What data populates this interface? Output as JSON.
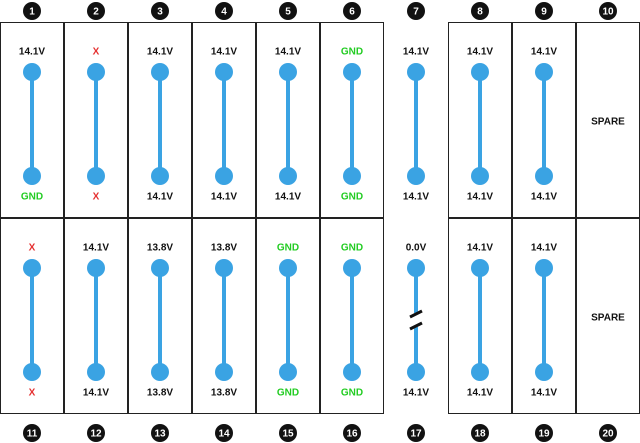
{
  "rows": [
    {
      "cells": [
        {
          "number": "1",
          "top": "14.1V",
          "top_color": "#111111",
          "bottom": "GND",
          "bottom_color": "#22cc22",
          "boxed": true
        },
        {
          "number": "2",
          "top": "X",
          "top_color": "#e53030",
          "bottom": "X",
          "bottom_color": "#e53030",
          "boxed": true
        },
        {
          "number": "3",
          "top": "14.1V",
          "top_color": "#111111",
          "bottom": "14.1V",
          "bottom_color": "#111111",
          "boxed": true
        },
        {
          "number": "4",
          "top": "14.1V",
          "top_color": "#111111",
          "bottom": "14.1V",
          "bottom_color": "#111111",
          "boxed": true
        },
        {
          "number": "5",
          "top": "14.1V",
          "top_color": "#111111",
          "bottom": "14.1V",
          "bottom_color": "#111111",
          "boxed": true
        },
        {
          "number": "6",
          "top": "GND",
          "top_color": "#22cc22",
          "bottom": "GND",
          "bottom_color": "#22cc22",
          "boxed": true
        },
        {
          "number": "7",
          "top": "14.1V",
          "top_color": "#111111",
          "bottom": "14.1V",
          "bottom_color": "#111111",
          "boxed": false
        },
        {
          "number": "8",
          "top": "14.1V",
          "top_color": "#111111",
          "bottom": "14.1V",
          "bottom_color": "#111111",
          "boxed": true
        },
        {
          "number": "9",
          "top": "14.1V",
          "top_color": "#111111",
          "bottom": "14.1V",
          "bottom_color": "#111111",
          "boxed": true
        },
        {
          "number": "10",
          "label": "SPARE",
          "boxed": true
        }
      ]
    },
    {
      "cells": [
        {
          "number": "11",
          "top": "X",
          "top_color": "#e53030",
          "bottom": "X",
          "bottom_color": "#e53030",
          "boxed": true
        },
        {
          "number": "12",
          "top": "14.1V",
          "top_color": "#111111",
          "bottom": "14.1V",
          "bottom_color": "#111111",
          "boxed": true
        },
        {
          "number": "13",
          "top": "13.8V",
          "top_color": "#111111",
          "bottom": "13.8V",
          "bottom_color": "#111111",
          "boxed": true
        },
        {
          "number": "14",
          "top": "13.8V",
          "top_color": "#111111",
          "bottom": "13.8V",
          "bottom_color": "#111111",
          "boxed": true
        },
        {
          "number": "15",
          "top": "GND",
          "top_color": "#22cc22",
          "bottom": "GND",
          "bottom_color": "#22cc22",
          "boxed": true
        },
        {
          "number": "16",
          "top": "GND",
          "top_color": "#22cc22",
          "bottom": "GND",
          "bottom_color": "#22cc22",
          "boxed": true
        },
        {
          "number": "17",
          "top": "0.0V",
          "top_color": "#111111",
          "bottom": "14.1V",
          "bottom_color": "#111111",
          "boxed": false,
          "broken": true
        },
        {
          "number": "18",
          "top": "14.1V",
          "top_color": "#111111",
          "bottom": "14.1V",
          "bottom_color": "#111111",
          "boxed": true
        },
        {
          "number": "19",
          "top": "14.1V",
          "top_color": "#111111",
          "bottom": "14.1V",
          "bottom_color": "#111111",
          "boxed": true
        },
        {
          "number": "20",
          "label": "SPARE",
          "boxed": true
        }
      ]
    }
  ]
}
